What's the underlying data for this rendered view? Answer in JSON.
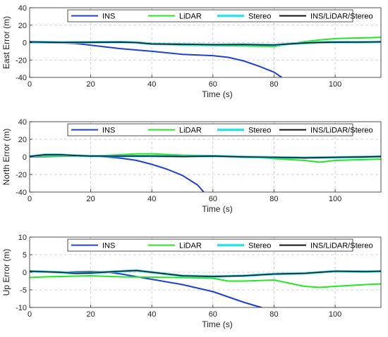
{
  "chart_data": [
    {
      "type": "line",
      "xlabel": "Time (s)",
      "ylabel": "East Error (m)",
      "xlim": [
        0,
        115
      ],
      "ylim": [
        -40,
        40
      ],
      "xticks": [
        0,
        20,
        40,
        60,
        80,
        100
      ],
      "yticks": [
        -40,
        -20,
        0,
        20,
        40
      ],
      "grid": true,
      "legend": "top-center",
      "series": [
        {
          "name": "INS",
          "color": "#1f3fd6",
          "x": [
            0,
            10,
            15,
            20,
            30,
            40,
            50,
            60,
            65,
            70,
            75,
            80,
            82.5
          ],
          "y": [
            0,
            -0.3,
            -1,
            -3,
            -7,
            -10,
            -13.5,
            -15,
            -17,
            -21,
            -27,
            -34,
            -40
          ]
        },
        {
          "name": "LiDAR",
          "color": "#21e821",
          "x": [
            0,
            10,
            20,
            30,
            40,
            50,
            60,
            70,
            80,
            85,
            90,
            95,
            100,
            105,
            110,
            115
          ],
          "y": [
            1,
            0.3,
            0.5,
            1,
            -1.5,
            -3,
            -3.5,
            -3.8,
            -4.5,
            -1.5,
            1,
            3,
            4.5,
            5,
            5.5,
            6
          ]
        },
        {
          "name": "Stereo",
          "color": "#33e0f0",
          "x": [
            0,
            10,
            20,
            30,
            35,
            40,
            50,
            60,
            70,
            80,
            85,
            90,
            95,
            100,
            110,
            115
          ],
          "y": [
            0.8,
            0.2,
            0.3,
            0.6,
            0,
            -1.5,
            -2,
            -2.5,
            -2.3,
            -2.8,
            -1.5,
            -0.5,
            0.2,
            0.5,
            0.6,
            0.8
          ]
        },
        {
          "name": "INS/LiDAR/Stereo",
          "color": "#111111",
          "x": [
            0,
            10,
            20,
            30,
            35,
            40,
            50,
            60,
            70,
            80,
            85,
            90,
            95,
            100,
            110,
            115
          ],
          "y": [
            0.8,
            0.2,
            0.3,
            0.6,
            0,
            -1.5,
            -2,
            -2.5,
            -2.3,
            -2.8,
            -1.5,
            -0.5,
            0.2,
            0.5,
            0.6,
            0.8
          ]
        }
      ]
    },
    {
      "type": "line",
      "xlabel": "Time (s)",
      "ylabel": "North Error (m)",
      "xlim": [
        0,
        115
      ],
      "ylim": [
        -40,
        40
      ],
      "xticks": [
        0,
        20,
        40,
        60,
        80,
        100
      ],
      "yticks": [
        -40,
        -20,
        0,
        20,
        40
      ],
      "grid": true,
      "legend": "top-center",
      "series": [
        {
          "name": "INS",
          "color": "#1f3fd6",
          "x": [
            0,
            5,
            10,
            15,
            20,
            25,
            30,
            35,
            40,
            45,
            50,
            55,
            57
          ],
          "y": [
            0,
            0.3,
            0.8,
            1.2,
            1,
            0,
            -1.5,
            -4,
            -8.5,
            -14,
            -21,
            -32,
            -40
          ]
        },
        {
          "name": "LiDAR",
          "color": "#21e821",
          "x": [
            0,
            10,
            20,
            30,
            35,
            40,
            50,
            60,
            70,
            80,
            90,
            95,
            100,
            110,
            115
          ],
          "y": [
            0.5,
            1,
            1,
            2.5,
            3.5,
            3.5,
            2,
            1.5,
            0.5,
            -2,
            -4,
            -6,
            -4,
            -3,
            -2.5
          ]
        },
        {
          "name": "Stereo",
          "color": "#33e0f0",
          "x": [
            0,
            5,
            10,
            15,
            20,
            30,
            40,
            50,
            60,
            70,
            80,
            90,
            100,
            110,
            115
          ],
          "y": [
            0.5,
            2.5,
            2.5,
            1.5,
            1,
            1,
            1,
            0.5,
            1,
            0,
            -0.5,
            -1,
            -0.5,
            0,
            0.5
          ]
        },
        {
          "name": "INS/LiDAR/Stereo",
          "color": "#111111",
          "x": [
            0,
            5,
            10,
            15,
            20,
            30,
            40,
            50,
            60,
            70,
            80,
            90,
            100,
            110,
            115
          ],
          "y": [
            0.5,
            2.5,
            2.5,
            1.5,
            1,
            1,
            1,
            0.5,
            1,
            0,
            -0.5,
            -1,
            -0.5,
            0,
            0.5
          ]
        }
      ]
    },
    {
      "type": "line",
      "xlabel": "Time (s)",
      "ylabel": "Up Error (m)",
      "xlim": [
        0,
        115
      ],
      "ylim": [
        -10,
        10
      ],
      "xticks": [
        0,
        20,
        40,
        60,
        80,
        100
      ],
      "yticks": [
        -10,
        -5,
        0,
        5,
        10
      ],
      "grid": true,
      "legend": "top-center",
      "series": [
        {
          "name": "INS",
          "color": "#1f3fd6",
          "x": [
            0,
            10,
            20,
            25,
            30,
            40,
            50,
            60,
            65,
            70,
            75,
            76
          ],
          "y": [
            0.2,
            0,
            0.2,
            0.1,
            -0.5,
            -2,
            -3.5,
            -5.5,
            -7,
            -8.5,
            -9.8,
            -10
          ]
        },
        {
          "name": "LiDAR",
          "color": "#21e821",
          "x": [
            0,
            5,
            10,
            20,
            30,
            40,
            50,
            60,
            65,
            70,
            80,
            90,
            95,
            100,
            110,
            115
          ],
          "y": [
            -1.5,
            -1.3,
            -1.2,
            -1,
            -1.3,
            -1.4,
            -1.5,
            -1.7,
            -2.5,
            -2.5,
            -2.2,
            -4,
            -4.3,
            -4,
            -3.5,
            -3.3
          ]
        },
        {
          "name": "Stereo",
          "color": "#33e0f0",
          "x": [
            0,
            10,
            15,
            20,
            30,
            35,
            40,
            50,
            60,
            70,
            80,
            90,
            100,
            110,
            115
          ],
          "y": [
            0.3,
            0,
            -0.3,
            -0.2,
            0.3,
            0.5,
            0,
            -1,
            -1.2,
            -1,
            -0.5,
            -0.3,
            0.3,
            0.2,
            0.3
          ]
        },
        {
          "name": "INS/LiDAR/Stereo",
          "color": "#111111",
          "x": [
            0,
            10,
            15,
            20,
            30,
            35,
            40,
            50,
            60,
            70,
            80,
            90,
            100,
            110,
            115
          ],
          "y": [
            0.3,
            0,
            -0.3,
            -0.2,
            0.3,
            0.5,
            0,
            -1,
            -1.2,
            -1,
            -0.5,
            -0.3,
            0.3,
            0.2,
            0.3
          ]
        }
      ]
    }
  ]
}
